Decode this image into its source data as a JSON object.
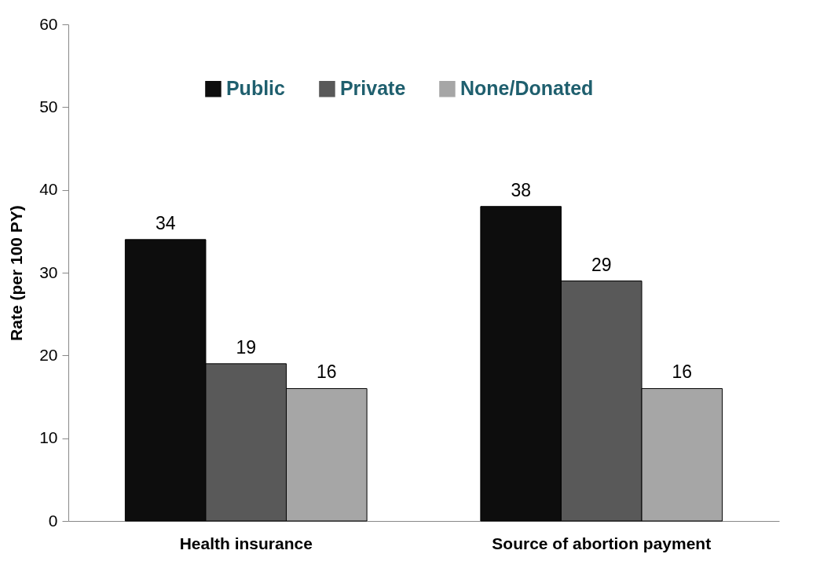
{
  "chart_data": {
    "type": "bar",
    "ylabel": "Rate (per 100 PY)",
    "categories": [
      "Health insurance",
      "Source of abortion payment"
    ],
    "series": [
      {
        "name": "Public",
        "color": "#0d0d0d",
        "values": [
          34,
          38
        ]
      },
      {
        "name": "Private",
        "color": "#595959",
        "values": [
          19,
          29
        ]
      },
      {
        "name": "None/Donated",
        "color": "#a6a6a6",
        "values": [
          16,
          16
        ]
      }
    ],
    "ylim": [
      0,
      60
    ],
    "yticks": [
      0,
      10,
      20,
      30,
      40,
      50,
      60
    ],
    "grid": false,
    "legend": "top",
    "data_labels": true
  }
}
